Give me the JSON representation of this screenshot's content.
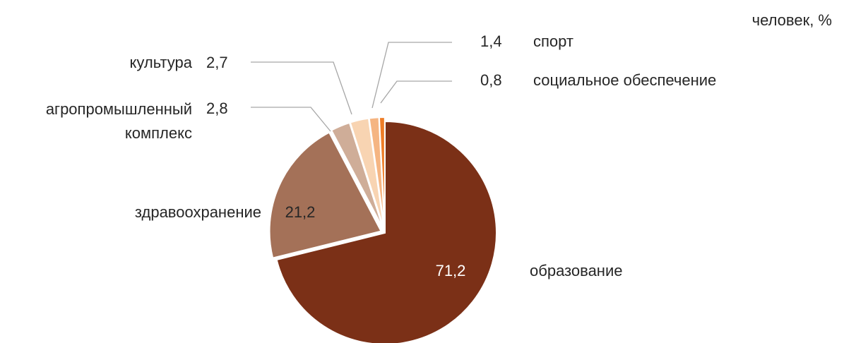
{
  "chart_data": {
    "type": "pie",
    "title": "человек, %",
    "categories": [
      "образование",
      "здравоохранение",
      "агропромышленный комплекс",
      "культура",
      "спорт",
      "социальное обеспечение"
    ],
    "values": [
      71.2,
      21.2,
      2.8,
      2.7,
      1.4,
      0.8
    ],
    "value_labels": [
      "71,2",
      "21,2",
      "2,8",
      "2,7",
      "1,4",
      "0,8"
    ],
    "colors": [
      "#7b3017",
      "#a47158",
      "#cfad98",
      "#f8d4b2",
      "#f5b582",
      "#ee7d27"
    ]
  }
}
